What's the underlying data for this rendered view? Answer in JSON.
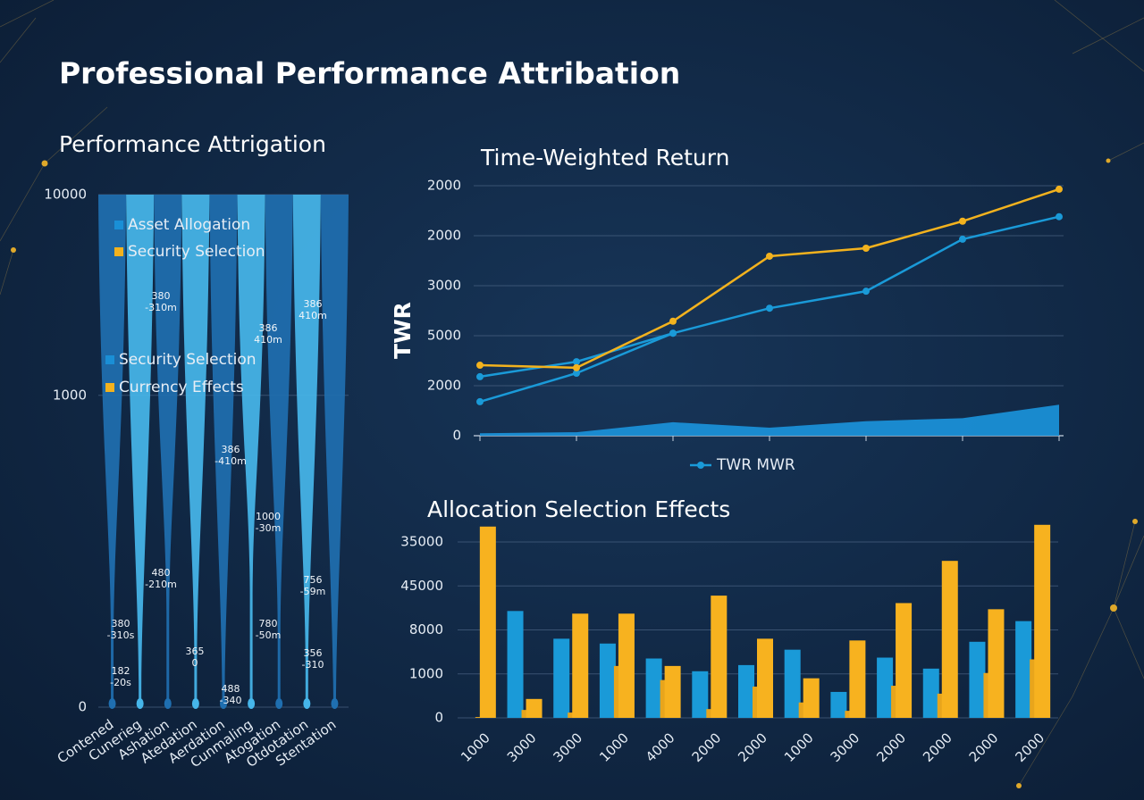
{
  "title": "Professional Performance Attribation",
  "chart_data": [
    {
      "type": "funnel",
      "title": "Performance Attrigation",
      "categories": [
        "Contened",
        "Cunerieg",
        "Ashation",
        "Atedation",
        "Aerdation",
        "Cunmaling",
        "Atogation",
        "Otdotation",
        "Stentation"
      ],
      "colors": [
        "#1f6fb0",
        "#46b6ea"
      ],
      "ylim": [
        0,
        10000
      ],
      "yticks": [
        0,
        1000,
        10000
      ],
      "yscale": "symlog",
      "grid": true,
      "legend": [
        {
          "name": "Asset Allogation",
          "color": "#1a8fd6"
        },
        {
          "name": "Security Selection",
          "color": "#f2b21e"
        },
        {
          "name": "Security Selection",
          "color": "#1a8fd6"
        },
        {
          "name": "Currency Effects",
          "color": "#f2b21e"
        }
      ],
      "annotations": [
        {
          "label": "380",
          "note": "-310s"
        },
        {
          "label": "182",
          "note": "-20s"
        },
        {
          "label": "380",
          "note": "-310m"
        },
        {
          "label": "480",
          "note": "-210m"
        },
        {
          "label": "365",
          "note": "0"
        },
        {
          "label": "386",
          "note": "-410m"
        },
        {
          "label": "488",
          "note": "-340"
        },
        {
          "label": "386",
          "note": "410m"
        },
        {
          "label": "1000",
          "note": "-30m"
        },
        {
          "label": "780",
          "note": "-50m"
        },
        {
          "label": "386",
          "note": "410m"
        },
        {
          "label": "756",
          "note": "-59m"
        },
        {
          "label": "356",
          "note": "-310"
        }
      ]
    },
    {
      "type": "line",
      "title": "Time-Weighted Return",
      "y_label": "TWR",
      "categories": [
        null,
        null,
        null,
        null,
        null,
        null,
        null
      ],
      "ylim": [
        0,
        5
      ],
      "yticks": [
        {
          "value": 0,
          "label": "0"
        },
        {
          "value": 1,
          "label": "2000"
        },
        {
          "value": 2,
          "label": "5000"
        },
        {
          "value": 3,
          "label": "3000"
        },
        {
          "value": 4,
          "label": "2000"
        },
        {
          "value": 5,
          "label": "2000"
        }
      ],
      "grid": true,
      "series": [
        {
          "name": "TWR MWR",
          "color": "#1a9ad8",
          "values": [
            0.68,
            1.25,
            2.05,
            2.55,
            2.89,
            3.93,
            4.38
          ]
        },
        {
          "color": "#1a9ad8",
          "values": [
            1.18,
            1.48,
            2.05,
            null,
            null,
            null,
            null
          ]
        },
        {
          "color": "#f2b21e",
          "values": [
            1.41,
            1.36,
            2.29,
            3.59,
            3.75,
            4.29,
            4.93
          ]
        },
        {
          "type": "area",
          "color": "#1a8fd6",
          "values": [
            0.05,
            0.07,
            0.27,
            0.16,
            0.29,
            0.35,
            0.62
          ]
        }
      ]
    },
    {
      "type": "bar",
      "title": "Allocation Selection Effects",
      "categories": [
        "1000",
        "3000",
        "3000",
        "1000",
        "4000",
        "2000",
        "2000",
        "1000",
        "3000",
        "2000",
        "2000",
        "2000",
        "2000"
      ],
      "ylim": [
        0,
        4
      ],
      "yticks": [
        {
          "value": 0,
          "label": "0"
        },
        {
          "value": 1,
          "label": "1000"
        },
        {
          "value": 2,
          "label": "8000"
        },
        {
          "value": 3,
          "label": "45000"
        },
        {
          "value": 4,
          "label": "35000"
        }
      ],
      "grid": true,
      "series": [
        {
          "color": "#1a9ad8",
          "values": [
            0,
            2.43,
            1.8,
            1.69,
            1.35,
            1.06,
            1.2,
            1.55,
            0.59,
            1.37,
            1.12,
            1.73,
            2.2
          ]
        },
        {
          "color": "#e8a51c",
          "values": [
            0.02,
            0.18,
            0.12,
            1.18,
            0.86,
            0.2,
            0.71,
            0.35,
            0.16,
            0.73,
            0.55,
            1.02,
            1.33
          ]
        },
        {
          "color": "#f7b21f",
          "values": [
            4.35,
            0.43,
            2.37,
            2.37,
            1.18,
            2.78,
            1.8,
            0.9,
            1.76,
            2.61,
            3.57,
            2.47,
            4.39
          ]
        }
      ]
    }
  ]
}
